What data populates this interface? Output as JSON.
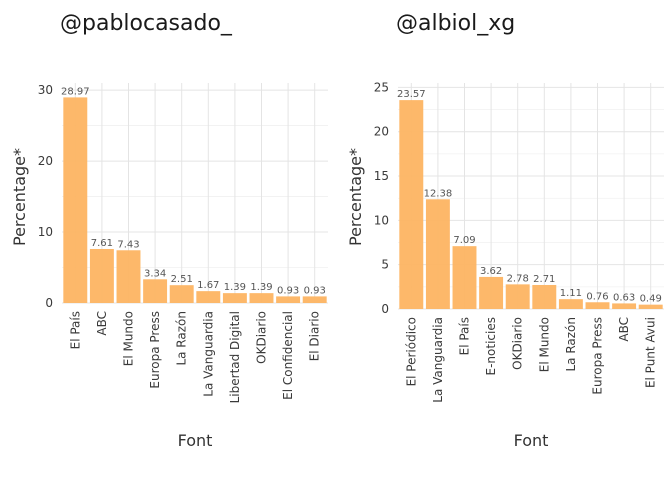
{
  "chart_data": [
    {
      "type": "bar",
      "title": "@pablocasado_",
      "xlabel": "Font",
      "ylabel": "Percentage*",
      "categories": [
        "El País",
        "ABC",
        "El Mundo",
        "Europa Press",
        "La Razón",
        "La Vanguardia",
        "Libertad Digital",
        "OKDiario",
        "El Confidencial",
        "El Diario"
      ],
      "values": [
        28.97,
        7.61,
        7.43,
        3.34,
        2.51,
        1.67,
        1.39,
        1.39,
        0.93,
        0.93
      ],
      "yticks": [
        0,
        10,
        20,
        30
      ],
      "ylim": [
        0,
        31
      ],
      "bar_color": "#fdb462",
      "grid": true
    },
    {
      "type": "bar",
      "title": "@albiol_xg",
      "xlabel": "Font",
      "ylabel": "Percentage*",
      "categories": [
        "El Periódico",
        "La Vanguardia",
        "El País",
        "E-noticies",
        "OKDiario",
        "El Mundo",
        "La Razón",
        "Europa Press",
        "ABC",
        "El Punt Avui"
      ],
      "values": [
        23.57,
        12.38,
        7.09,
        3.62,
        2.78,
        2.71,
        1.11,
        0.76,
        0.63,
        0.49
      ],
      "yticks": [
        0,
        5,
        10,
        15,
        20,
        25
      ],
      "ylim": [
        0,
        25.5
      ],
      "bar_color": "#fdb462",
      "grid": true
    }
  ]
}
